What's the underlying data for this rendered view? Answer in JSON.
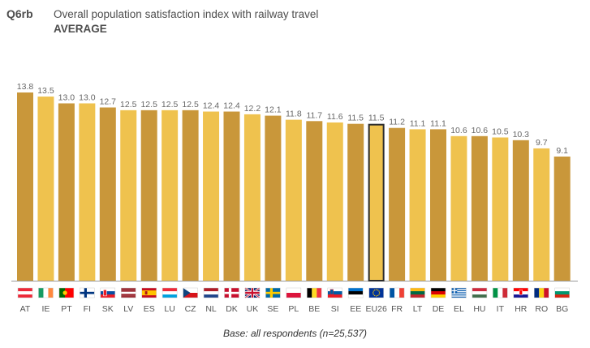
{
  "header": {
    "question_code": "Q6rb",
    "title": "Overall population satisfaction index with railway travel",
    "subtitle": "AVERAGE"
  },
  "footer": {
    "base_note": "Base: all respondents (n=25,537)"
  },
  "colors": {
    "bar_dark": "#c9973a",
    "bar_light": "#efc24e",
    "highlight_border": "#2b2b2b",
    "axis_line": "#999999",
    "label_text": "#666666"
  },
  "chart_data": {
    "type": "bar",
    "title": "Overall population satisfaction index with railway travel",
    "subtitle": "AVERAGE",
    "categories": [
      "AT",
      "IE",
      "PT",
      "FI",
      "SK",
      "LV",
      "ES",
      "LU",
      "CZ",
      "NL",
      "DK",
      "UK",
      "SE",
      "PL",
      "BE",
      "SI",
      "EE",
      "EU26",
      "FR",
      "LT",
      "DE",
      "EL",
      "HU",
      "IT",
      "HR",
      "RO",
      "BG"
    ],
    "values": [
      13.8,
      13.5,
      13.0,
      13.0,
      12.7,
      12.5,
      12.5,
      12.5,
      12.5,
      12.4,
      12.4,
      12.2,
      12.1,
      11.8,
      11.7,
      11.6,
      11.5,
      11.5,
      11.2,
      11.1,
      11.1,
      10.6,
      10.6,
      10.5,
      10.3,
      9.7,
      9.1
    ],
    "value_labels": [
      "13.8",
      "13.5",
      "13.0",
      "13.0",
      "12.7",
      "12.5",
      "12.5",
      "12.5",
      "12.5",
      "12.4",
      "12.4",
      "12.2",
      "12.1",
      "11.8",
      "11.7",
      "11.6",
      "11.5",
      "11.5",
      "11.2",
      "11.1",
      "11.1",
      "10.6",
      "10.6",
      "10.5",
      "10.3",
      "9.7",
      "9.1"
    ],
    "highlight": "EU26",
    "ylim": [
      0,
      13.8
    ],
    "grid": false,
    "legend": "none",
    "flag_icons": [
      "austria-flag-icon",
      "ireland-flag-icon",
      "portugal-flag-icon",
      "finland-flag-icon",
      "slovakia-flag-icon",
      "latvia-flag-icon",
      "spain-flag-icon",
      "luxembourg-flag-icon",
      "czechia-flag-icon",
      "netherlands-flag-icon",
      "denmark-flag-icon",
      "uk-flag-icon",
      "sweden-flag-icon",
      "poland-flag-icon",
      "belgium-flag-icon",
      "slovenia-flag-icon",
      "estonia-flag-icon",
      "eu-flag-icon",
      "france-flag-icon",
      "lithuania-flag-icon",
      "germany-flag-icon",
      "greece-flag-icon",
      "hungary-flag-icon",
      "italy-flag-icon",
      "croatia-flag-icon",
      "romania-flag-icon",
      "bulgaria-flag-icon"
    ]
  }
}
